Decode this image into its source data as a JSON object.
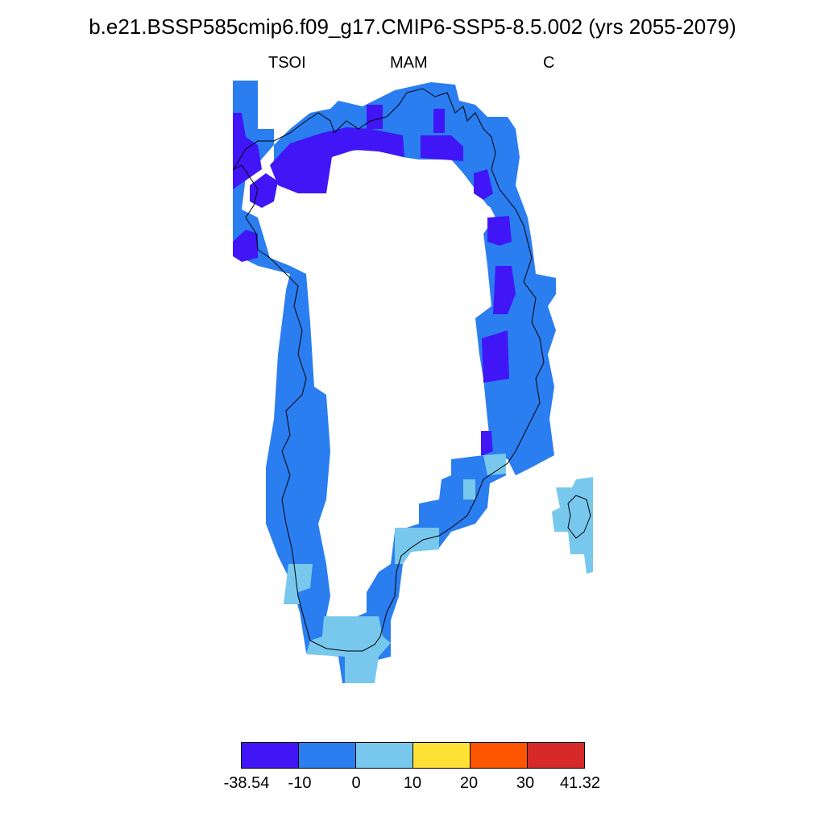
{
  "title": "b.e21.BSSP585cmip6.f09_g17.CMIP6-SSP5-8.5.002 (yrs 2055-2079)",
  "subtitle": {
    "left": "TSOI",
    "center": "MAM",
    "right": "C"
  },
  "colorbar": {
    "colors": [
      "#4016f7",
      "#2a7ef0",
      "#78c8ee",
      "#fee135",
      "#fd5500",
      "#d62a2a"
    ],
    "tick_labels": [
      "-38.54",
      "-10",
      "0",
      "10",
      "20",
      "30",
      "41.32"
    ]
  },
  "map_legend": {
    "classes": [
      {
        "range": "-38.54 to -10",
        "color": "#4016f7"
      },
      {
        "range": "-10 to 0",
        "color": "#2a7ef0"
      },
      {
        "range": "0 to 10",
        "color": "#78c8ee"
      }
    ]
  }
}
